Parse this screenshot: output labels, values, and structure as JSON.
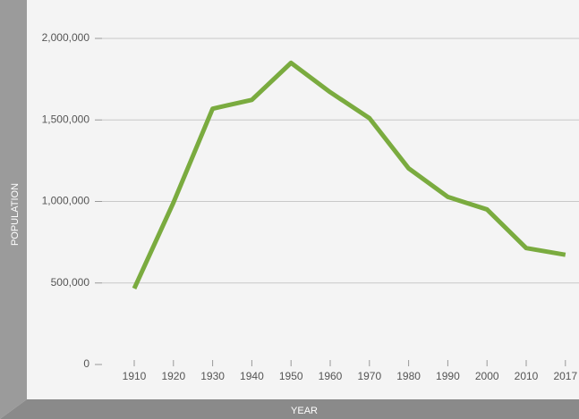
{
  "chart_data": {
    "type": "line",
    "y_label": "POPULATION",
    "x_label": "YEAR",
    "categories": [
      "1910",
      "1920",
      "1930",
      "1940",
      "1950",
      "1960",
      "1970",
      "1980",
      "1990",
      "2000",
      "2010",
      "2017"
    ],
    "series": [
      {
        "name": "Population",
        "color": "#7aab3f",
        "values": [
          466000,
          993000,
          1569000,
          1623000,
          1850000,
          1670000,
          1511000,
          1203000,
          1028000,
          951000,
          714000,
          673000
        ]
      }
    ],
    "ylim": [
      0,
      2000000
    ],
    "yticks": [
      0,
      {
        "value": 500000,
        "label": "500,000"
      },
      {
        "value": 1000000,
        "label": "1,000,000"
      },
      {
        "value": 1500000,
        "label": "1,500,000"
      },
      {
        "value": 2000000,
        "label": "2,000,000"
      }
    ],
    "grid": true
  }
}
